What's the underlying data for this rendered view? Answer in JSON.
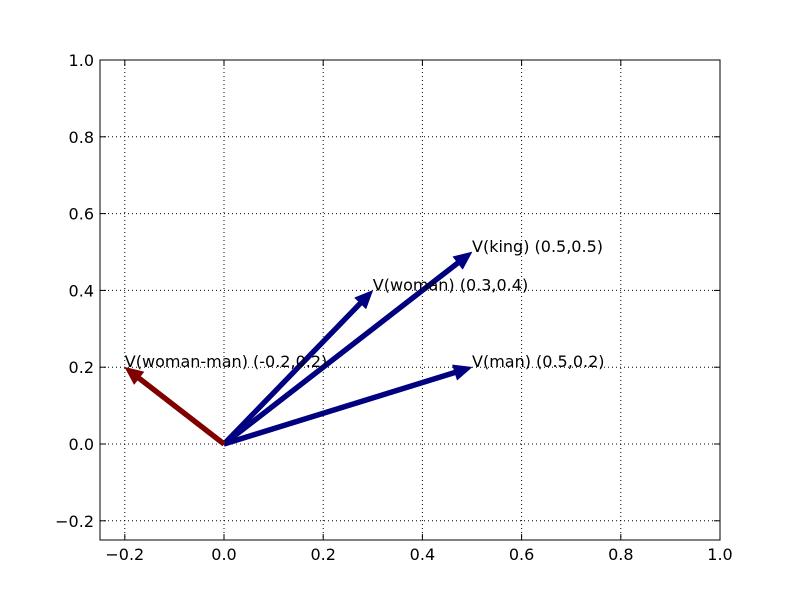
{
  "chart_data": {
    "type": "quiver",
    "title": "",
    "xlabel": "",
    "ylabel": "",
    "xlim": [
      -0.25,
      1.0
    ],
    "ylim": [
      -0.25,
      1.0
    ],
    "grid": true,
    "xticks": [
      -0.2,
      0.0,
      0.2,
      0.4,
      0.6,
      0.8,
      1.0
    ],
    "xtick_labels": [
      "−0.2",
      "0.0",
      "0.2",
      "0.4",
      "0.6",
      "0.8",
      "1.0"
    ],
    "yticks": [
      -0.2,
      0.0,
      0.2,
      0.4,
      0.6,
      0.8,
      1.0
    ],
    "ytick_labels": [
      "−0.2",
      "0.0",
      "0.2",
      "0.4",
      "0.6",
      "0.8",
      "1.0"
    ],
    "vectors": [
      {
        "label": "V(king) (0.5,0.5)",
        "x0": 0,
        "y0": 0,
        "x1": 0.5,
        "y1": 0.5,
        "color": "#000080"
      },
      {
        "label": "V(woman) (0.3,0.4)",
        "x0": 0,
        "y0": 0,
        "x1": 0.3,
        "y1": 0.4,
        "color": "#000080"
      },
      {
        "label": "V(man) (0.5,0.2)",
        "x0": 0,
        "y0": 0,
        "x1": 0.5,
        "y1": 0.2,
        "color": "#000080"
      },
      {
        "label": "V(woman-man) (-0.2,0.2)",
        "x0": 0,
        "y0": 0,
        "x1": -0.2,
        "y1": 0.2,
        "color": "#800000"
      }
    ]
  }
}
